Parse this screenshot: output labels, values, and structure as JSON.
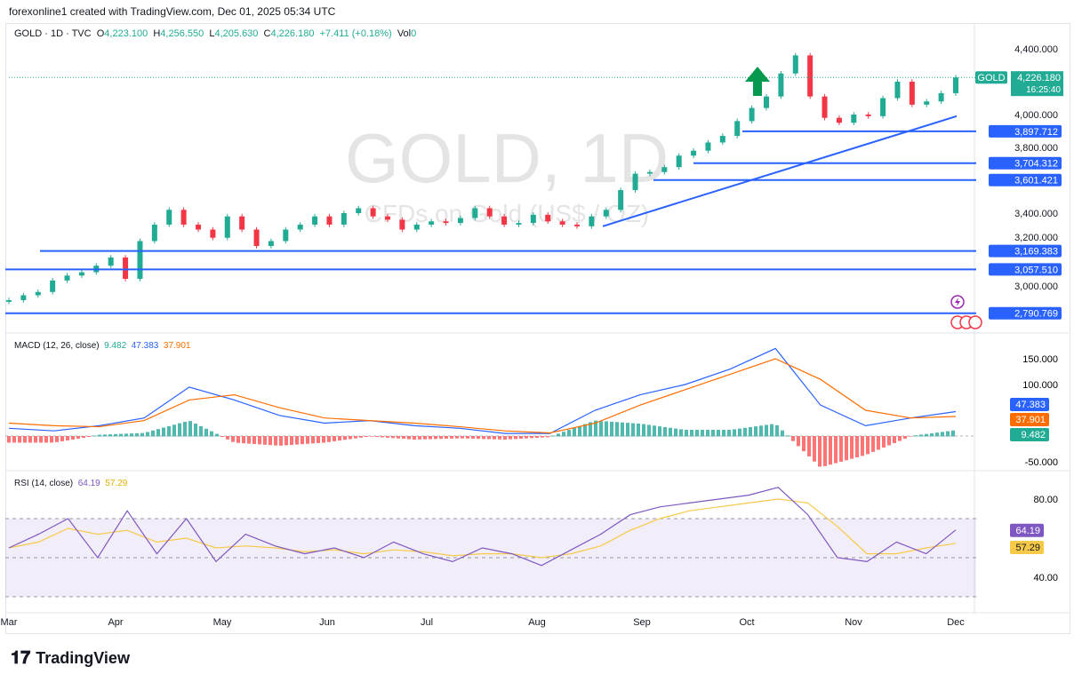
{
  "credit": "forexonline1 created with TradingView.com, Dec 01, 2025 05:34 UTC",
  "legend": {
    "symbol": "GOLD · 1D · TVC",
    "o_label": "O",
    "o": "4,223.100",
    "h_label": "H",
    "h": "4,256.550",
    "l_label": "L",
    "l": "4,205.630",
    "c_label": "C",
    "c": "4,226.180",
    "change": "+7.411 (+0.18%)",
    "vol_label": "Vol",
    "vol": "0"
  },
  "watermark": {
    "title": "GOLD, 1D",
    "subtitle": "CFDs on Gold (US$ / OZ)"
  },
  "price_tag": {
    "symbol": "GOLD",
    "price": "4,226.180",
    "countdown": "16:25:40"
  },
  "macd_legend": {
    "title": "MACD (12, 26, close)",
    "hist": "9.482",
    "macd": "47.383",
    "signal": "37.901"
  },
  "rsi_legend": {
    "title": "RSI (14, close)",
    "rsi": "64.19",
    "ma": "57.29"
  },
  "logo": "TradingView",
  "colors": {
    "up": "#22ab94",
    "down": "#f23645",
    "level": "#2962ff",
    "macd": "#2962ff",
    "signal": "#ff6d00",
    "rsi": "#7e57c2",
    "rsi_ma": "#f7c948"
  },
  "chart_data": [
    {
      "type": "candlestick",
      "x_ticks": [
        "Mar",
        "Apr",
        "May",
        "Jun",
        "Jul",
        "Aug",
        "Sep",
        "Oct",
        "Nov",
        "Dec"
      ],
      "y_ticks": [
        "4,400.000",
        "4,000.000",
        "3,800.000",
        "3,400.000",
        "3,200.000",
        "3,000.000"
      ],
      "ylim": [
        2760,
        4420
      ],
      "closes": [
        2870,
        2900,
        2920,
        2990,
        3020,
        3040,
        3080,
        3130,
        3000,
        3230,
        3330,
        3420,
        3330,
        3300,
        3250,
        3380,
        3300,
        3200,
        3230,
        3300,
        3330,
        3380,
        3330,
        3400,
        3430,
        3380,
        3360,
        3300,
        3330,
        3350,
        3340,
        3370,
        3430,
        3380,
        3330,
        3340,
        3390,
        3350,
        3330,
        3320,
        3380,
        3420,
        3540,
        3640,
        3650,
        3680,
        3750,
        3780,
        3830,
        3870,
        3960,
        4040,
        4110,
        4250,
        4360,
        4110,
        3980,
        3950,
        4000,
        3990,
        4100,
        4200,
        4060,
        4080,
        4130,
        4226
      ],
      "levels": [
        "3,897.712",
        "3,704.312",
        "3,601.421",
        "3,169.383",
        "3,057.510",
        "2,790.769"
      ],
      "trendline": {
        "from": [
          "Aug",
          3320
        ],
        "to": [
          "Dec",
          3990
        ]
      },
      "annotation": "up-arrow"
    },
    {
      "type": "line",
      "name": "MACD (12, 26, close)",
      "y_ticks": [
        "150.000",
        "100.000",
        "-50.000"
      ],
      "macd": [
        15,
        10,
        20,
        35,
        95,
        70,
        40,
        25,
        30,
        20,
        15,
        5,
        5,
        50,
        80,
        100,
        130,
        170,
        60,
        20,
        35,
        47.383
      ],
      "signal": [
        25,
        20,
        18,
        30,
        70,
        80,
        55,
        35,
        30,
        25,
        18,
        10,
        6,
        25,
        60,
        90,
        120,
        150,
        110,
        50,
        35,
        37.901
      ]
    },
    {
      "type": "line",
      "name": "RSI (14, close)",
      "y_ticks": [
        "80.00",
        "40.00"
      ],
      "bands": [
        70,
        50,
        30
      ],
      "rsi": [
        55,
        62,
        70,
        50,
        74,
        52,
        70,
        48,
        62,
        56,
        52,
        55,
        50,
        58,
        52,
        48,
        55,
        52,
        46,
        54,
        62,
        72,
        76,
        78,
        80,
        82,
        86,
        72,
        50,
        48,
        58,
        52,
        64.19
      ],
      "ma": [
        55,
        58,
        65,
        62,
        64,
        58,
        60,
        55,
        56,
        55,
        53,
        54,
        52,
        54,
        53,
        51,
        52,
        52,
        50,
        52,
        56,
        64,
        70,
        74,
        76,
        78,
        80,
        78,
        66,
        52,
        52,
        55,
        57.29
      ]
    }
  ]
}
